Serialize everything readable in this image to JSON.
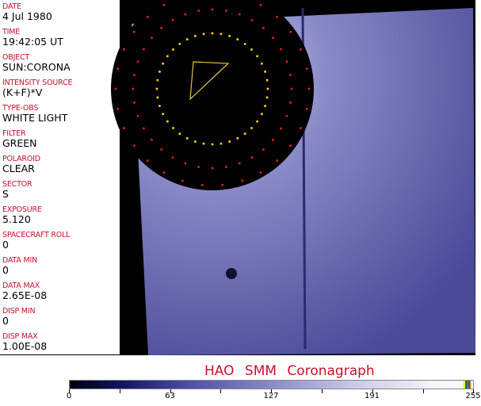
{
  "panel": {
    "fields": [
      {
        "label": "DATE",
        "value": "4 Jul 1980"
      },
      {
        "label": "TIME",
        "value": "19:42:05 UT"
      },
      {
        "label": "OBJECT",
        "value": "SUN:CORONA"
      },
      {
        "label": "INTENSITY SOURCE",
        "value": "(K+F)*V"
      },
      {
        "label": "TYPE-OBS",
        "value": "WHITE LIGHT"
      },
      {
        "label": "FILTER",
        "value": "GREEN"
      },
      {
        "label": "POLAROID",
        "value": "CLEAR"
      },
      {
        "label": "SECTOR",
        "value": "S"
      },
      {
        "label": "EXPOSURE",
        "value": "5.120"
      },
      {
        "label": "SPACECRAFT ROLL",
        "value": "0"
      },
      {
        "label": "DATA MIN",
        "value": "0"
      },
      {
        "label": "DATA MAX",
        "value": "2.65E-08"
      },
      {
        "label": "DISP MIN",
        "value": "0"
      },
      {
        "label": "DISP MAX",
        "value": "1.00E-08"
      }
    ]
  },
  "title": "HAO  SMM Coronagraph",
  "colorbar": {
    "ticks": [
      "0",
      "63",
      "127",
      "191",
      "255"
    ],
    "colormap": "blue-white",
    "accent": "#c8102e"
  }
}
